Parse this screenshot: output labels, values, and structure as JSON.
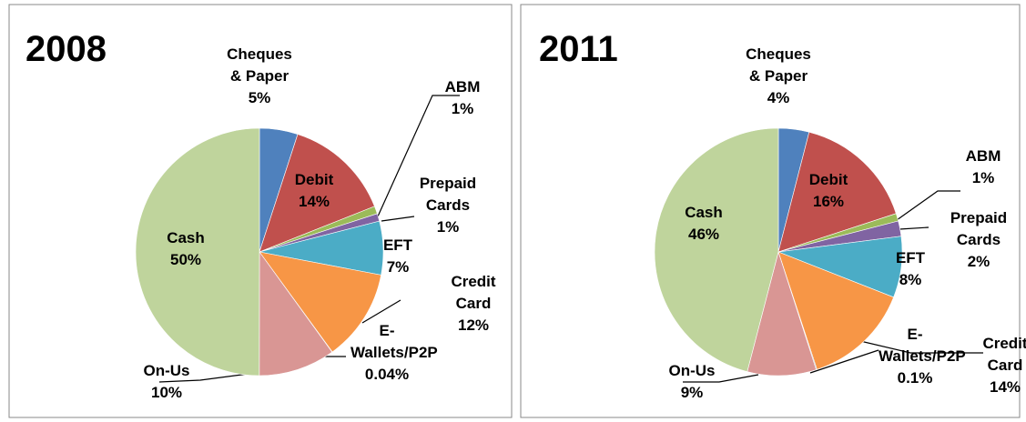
{
  "chart_data": [
    {
      "type": "pie",
      "title": "2008",
      "categories": [
        "Cheques & Paper",
        "Debit",
        "ABM",
        "Prepaid Cards",
        "EFT",
        "Credit Card",
        "E-Wallets/P2P",
        "On-Us",
        "Cash"
      ],
      "values": [
        5,
        14,
        1,
        1,
        7,
        12,
        0.04,
        10,
        50
      ],
      "value_labels": [
        "5%",
        "14%",
        "1%",
        "1%",
        "7%",
        "12%",
        "0.04%",
        "10%",
        "50%"
      ],
      "colors": [
        "#4f81bd",
        "#c0504d",
        "#9bbb59",
        "#8064a2",
        "#4bacc6",
        "#f79646",
        "#2c4d75",
        "#d99694",
        "#bfd49c"
      ]
    },
    {
      "type": "pie",
      "title": "2011",
      "categories": [
        "Cheques & Paper",
        "Debit",
        "ABM",
        "Prepaid Cards",
        "EFT",
        "Credit Card",
        "E-Wallets/P2P",
        "On-Us",
        "Cash"
      ],
      "values": [
        4,
        16,
        1,
        2,
        8,
        14,
        0.1,
        9,
        46
      ],
      "value_labels": [
        "4%",
        "16%",
        "1%",
        "2%",
        "8%",
        "14%",
        "0.1%",
        "9%",
        "46%"
      ],
      "colors": [
        "#4f81bd",
        "#c0504d",
        "#9bbb59",
        "#8064a2",
        "#4bacc6",
        "#f79646",
        "#2c4d75",
        "#d99694",
        "#bfd49c"
      ]
    }
  ]
}
